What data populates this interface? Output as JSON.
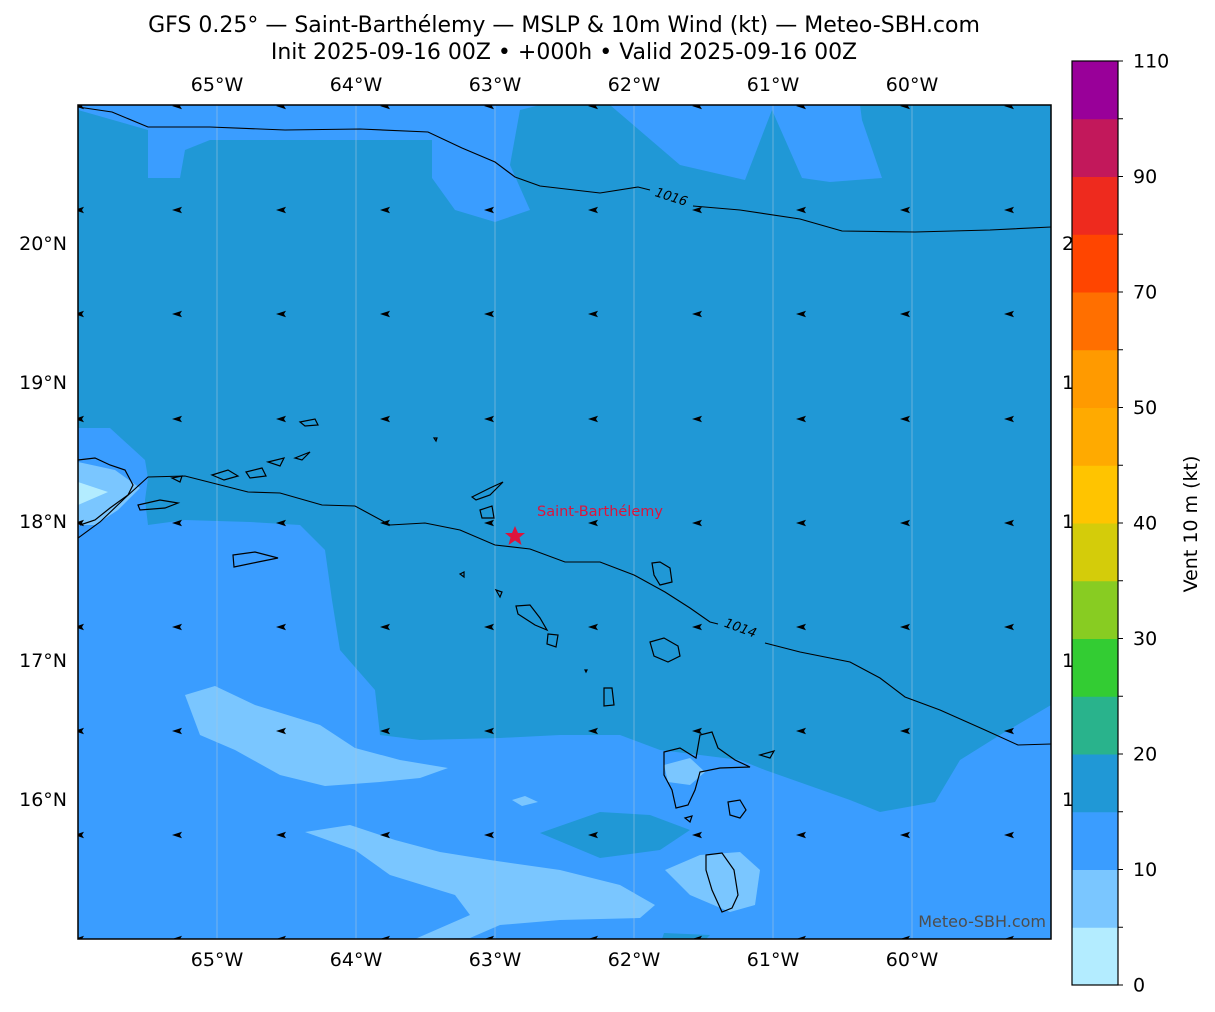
{
  "title": {
    "line1": "GFS 0.25° — Saint-Barthélemy — MSLP & 10m Wind (kt) — Meteo-SBH.com",
    "line2": "Init 2025-09-16 00Z • +000h • Valid 2025-09-16 00Z"
  },
  "map": {
    "lon_ticks": [
      "65°W",
      "64°W",
      "63°W",
      "62°W",
      "61°W",
      "60°W"
    ],
    "lat_ticks": [
      "20°N",
      "19°N",
      "18°N",
      "17°N",
      "16°N"
    ],
    "isobars": [
      {
        "label": "1016"
      },
      {
        "label": "1014"
      }
    ],
    "marker": {
      "label": "Saint-Barthélemy",
      "color": "#dc143c"
    },
    "watermark": "Meteo-SBH.com",
    "wind_fill_colors": {
      "0-5": "#b3ecff",
      "5-10": "#7ac6ff",
      "10-15": "#3a9dff",
      "15-20": "#2098d6"
    }
  },
  "colorbar": {
    "label": "Vent 10 m (kt)",
    "tick_labels": [
      "0",
      "10",
      "20",
      "30",
      "40",
      "50",
      "70",
      "90",
      "110"
    ],
    "colors": [
      "#b3ecff",
      "#7ac6ff",
      "#3a9dff",
      "#2098d6",
      "#29b38c",
      "#33cc33",
      "#88cc22",
      "#d4cc0a",
      "#ffc400",
      "#ffaa00",
      "#ff9a00",
      "#ff6f00",
      "#ff4500",
      "#ee2a1e",
      "#c2185b",
      "#990099"
    ]
  },
  "chart_data": {
    "type": "heatmap",
    "title": "GFS 0.25° — Saint-Barthélemy — MSLP & 10m Wind (kt) — Meteo-SBH.com",
    "colorbar_label": "Vent 10 m (kt)",
    "colorbar_boundaries": [
      0,
      5,
      10,
      15,
      20,
      25,
      30,
      35,
      40,
      45,
      50,
      60,
      70,
      80,
      90,
      100,
      110
    ],
    "isobar_levels_hpa": [
      1016,
      1014
    ],
    "lon_range": [
      -66,
      -59
    ],
    "lat_range": [
      15,
      21
    ],
    "marker": {
      "name": "Saint-Barthélemy",
      "lon": -62.85,
      "lat": 17.9
    }
  }
}
